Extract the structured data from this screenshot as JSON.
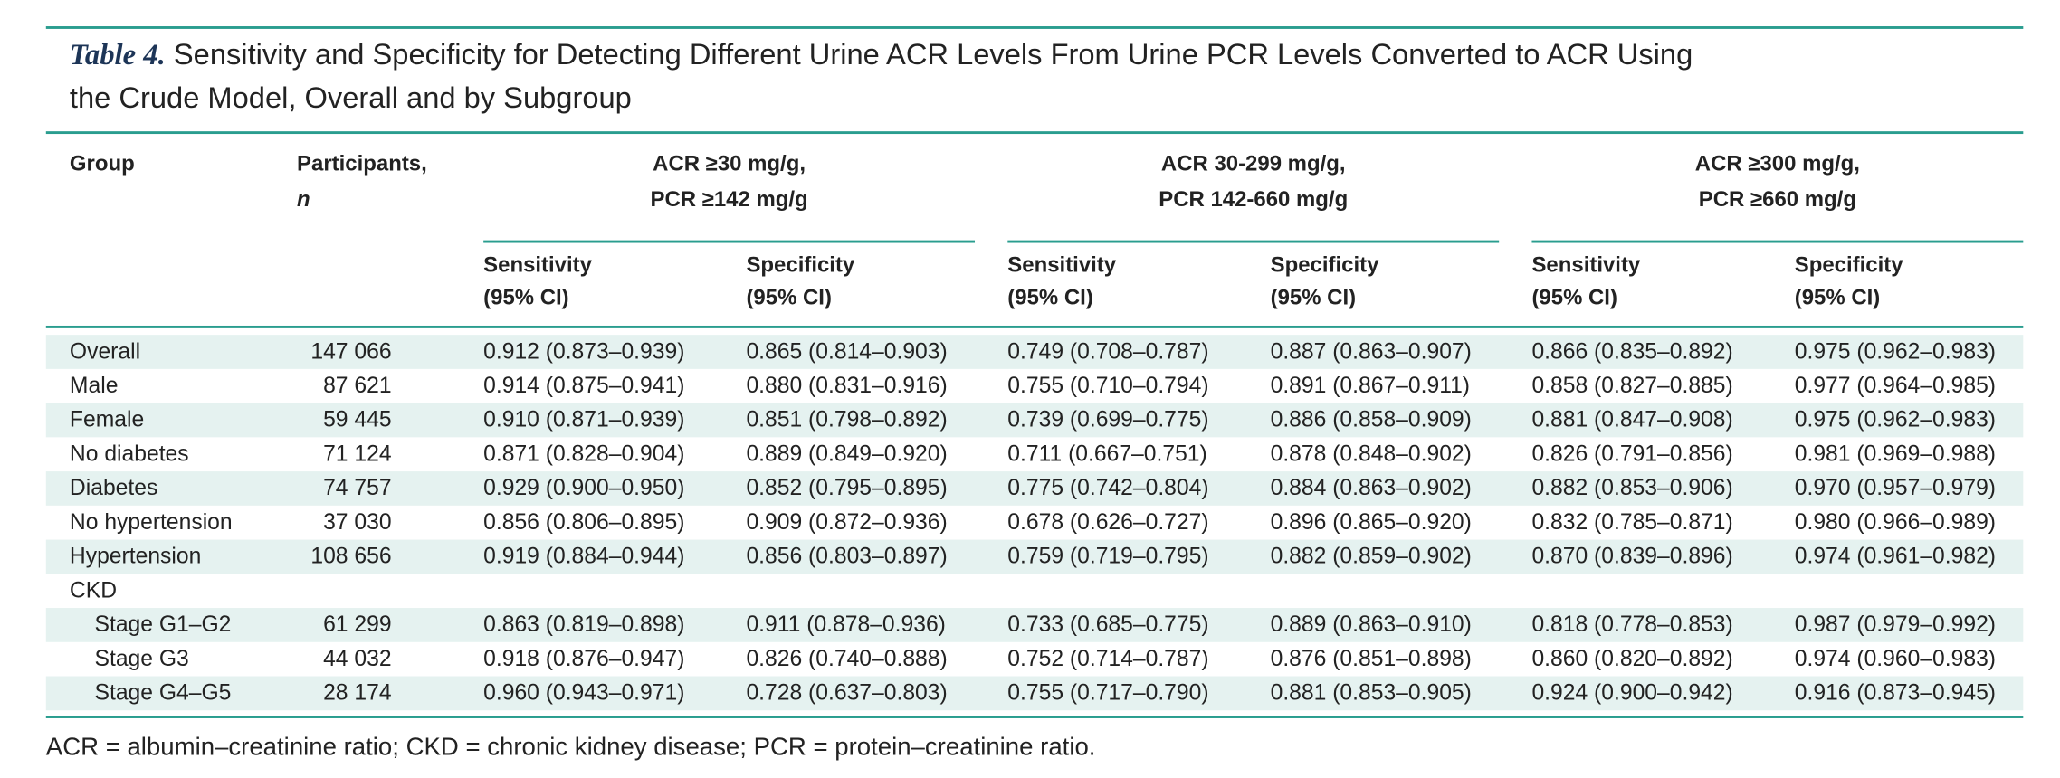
{
  "caption": {
    "label": "Table 4.",
    "text": "Sensitivity and Specificity for Detecting Different Urine ACR Levels From Urine PCR Levels Converted to ACR Using",
    "text2": "the Crude Model, Overall and by Subgroup"
  },
  "header": {
    "group": "Group",
    "participants": "Participants,",
    "n": "n",
    "groups": [
      {
        "line1": "ACR ≥30 mg/g,",
        "line2": "PCR ≥142 mg/g",
        "columns": [
          {
            "name": "Sensitivity",
            "ci": "(95% CI)"
          },
          {
            "name": "Specificity",
            "ci": "(95% CI)"
          }
        ]
      },
      {
        "line1": "ACR 30-299 mg/g,",
        "line2": "PCR 142-660 mg/g",
        "columns": [
          {
            "name": "Sensitivity",
            "ci": "(95% CI)"
          },
          {
            "name": "Specificity",
            "ci": "(95% CI)"
          }
        ]
      },
      {
        "line1": "ACR ≥300 mg/g,",
        "line2": "PCR ≥660 mg/g",
        "columns": [
          {
            "name": "Sensitivity",
            "ci": "(95% CI)"
          },
          {
            "name": "Specificity",
            "ci": "(95% CI)"
          }
        ]
      }
    ]
  },
  "rows": [
    {
      "group": "Overall",
      "n": "147 066",
      "values": [
        "0.912 (0.873–0.939)",
        "0.865 (0.814–0.903)",
        "0.749 (0.708–0.787)",
        "0.887 (0.863–0.907)",
        "0.866 (0.835–0.892)",
        "0.975 (0.962–0.983)"
      ]
    },
    {
      "group": "Male",
      "n": "87 621",
      "values": [
        "0.914 (0.875–0.941)",
        "0.880 (0.831–0.916)",
        "0.755 (0.710–0.794)",
        "0.891 (0.867–0.911)",
        "0.858 (0.827–0.885)",
        "0.977 (0.964–0.985)"
      ]
    },
    {
      "group": "Female",
      "n": "59 445",
      "values": [
        "0.910 (0.871–0.939)",
        "0.851 (0.798–0.892)",
        "0.739 (0.699–0.775)",
        "0.886 (0.858–0.909)",
        "0.881 (0.847–0.908)",
        "0.975 (0.962–0.983)"
      ]
    },
    {
      "group": "No diabetes",
      "n": "71 124",
      "values": [
        "0.871 (0.828–0.904)",
        "0.889 (0.849–0.920)",
        "0.711 (0.667–0.751)",
        "0.878 (0.848–0.902)",
        "0.826 (0.791–0.856)",
        "0.981 (0.969–0.988)"
      ]
    },
    {
      "group": "Diabetes",
      "n": "74 757",
      "values": [
        "0.929 (0.900–0.950)",
        "0.852 (0.795–0.895)",
        "0.775 (0.742–0.804)",
        "0.884 (0.863–0.902)",
        "0.882 (0.853–0.906)",
        "0.970 (0.957–0.979)"
      ]
    },
    {
      "group": "No hypertension",
      "n": "37 030",
      "values": [
        "0.856 (0.806–0.895)",
        "0.909 (0.872–0.936)",
        "0.678 (0.626–0.727)",
        "0.896 (0.865–0.920)",
        "0.832 (0.785–0.871)",
        "0.980 (0.966–0.989)"
      ]
    },
    {
      "group": "Hypertension",
      "n": "108 656",
      "values": [
        "0.919 (0.884–0.944)",
        "0.856 (0.803–0.897)",
        "0.759 (0.719–0.795)",
        "0.882 (0.859–0.902)",
        "0.870 (0.839–0.896)",
        "0.974 (0.961–0.982)"
      ]
    }
  ],
  "subgroup": {
    "label": "CKD",
    "rows": [
      {
        "group": "Stage G1–G2",
        "n": "61 299",
        "values": [
          "0.863 (0.819–0.898)",
          "0.911 (0.878–0.936)",
          "0.733 (0.685–0.775)",
          "0.889 (0.863–0.910)",
          "0.818 (0.778–0.853)",
          "0.987 (0.979–0.992)"
        ]
      },
      {
        "group": "Stage G3",
        "n": "44 032",
        "values": [
          "0.918 (0.876–0.947)",
          "0.826 (0.740–0.888)",
          "0.752 (0.714–0.787)",
          "0.876 (0.851–0.898)",
          "0.860 (0.820–0.892)",
          "0.974 (0.960–0.983)"
        ]
      },
      {
        "group": "Stage G4–G5",
        "n": "28 174",
        "values": [
          "0.960 (0.943–0.971)",
          "0.728 (0.637–0.803)",
          "0.755 (0.717–0.790)",
          "0.881 (0.853–0.905)",
          "0.924 (0.900–0.942)",
          "0.916 (0.873–0.945)"
        ]
      }
    ]
  },
  "footnote": "ACR = albumin–creatinine ratio; CKD = chronic kidney disease; PCR = protein–creatinine ratio."
}
